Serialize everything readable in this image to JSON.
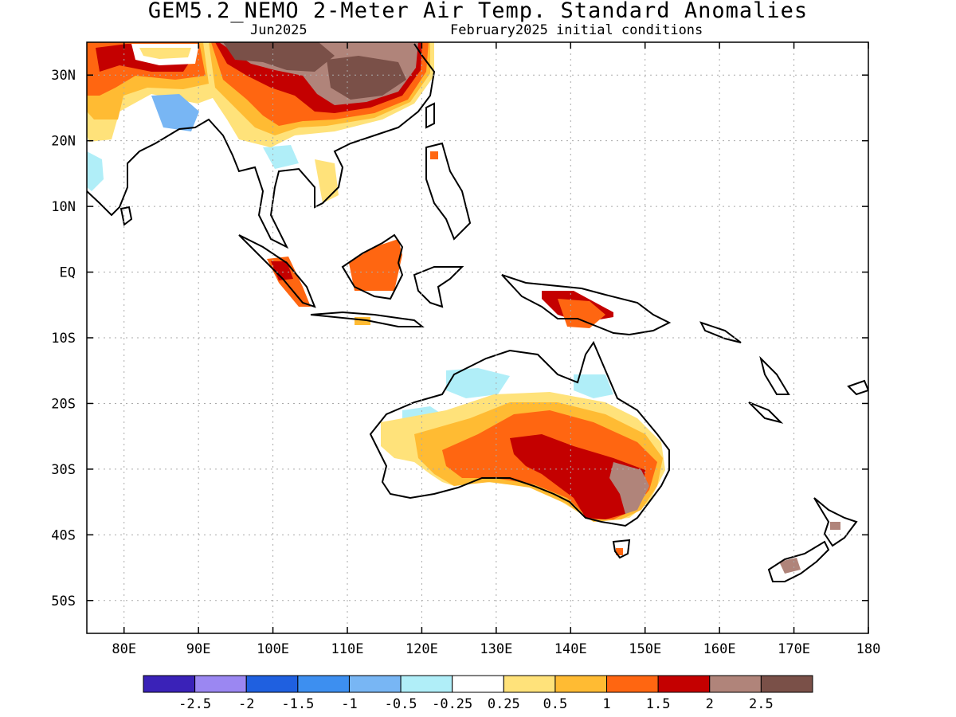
{
  "title": "GEM5.2_NEMO 2-Meter Air Temp. Standard Anomalies",
  "subtitle_left": "Jun2025",
  "subtitle_right": "February2025 initial conditions",
  "axes": {
    "lon_range": [
      75,
      180
    ],
    "lat_range": [
      -55,
      35
    ],
    "lon_ticks": [
      {
        "value": 80,
        "label": "80E"
      },
      {
        "value": 90,
        "label": "90E"
      },
      {
        "value": 100,
        "label": "100E"
      },
      {
        "value": 110,
        "label": "110E"
      },
      {
        "value": 120,
        "label": "120E"
      },
      {
        "value": 130,
        "label": "130E"
      },
      {
        "value": 140,
        "label": "140E"
      },
      {
        "value": 150,
        "label": "150E"
      },
      {
        "value": 160,
        "label": "160E"
      },
      {
        "value": 170,
        "label": "170E"
      },
      {
        "value": 180,
        "label": "180"
      }
    ],
    "lat_ticks": [
      {
        "value": 30,
        "label": "30N"
      },
      {
        "value": 20,
        "label": "20N"
      },
      {
        "value": 10,
        "label": "10N"
      },
      {
        "value": 0,
        "label": "EQ"
      },
      {
        "value": -10,
        "label": "10S"
      },
      {
        "value": -20,
        "label": "20S"
      },
      {
        "value": -30,
        "label": "30S"
      },
      {
        "value": -40,
        "label": "40S"
      },
      {
        "value": -50,
        "label": "50S"
      }
    ],
    "grid": "dotted"
  },
  "colorbar": {
    "colors": [
      "#3a22b8",
      "#9b87f2",
      "#1f60e0",
      "#3d8ff0",
      "#78b6f4",
      "#b0eef8",
      "#ffffff",
      "#ffe27a",
      "#ffbb33",
      "#ff6611",
      "#c40000",
      "#b0847a",
      "#7a5048"
    ],
    "labels": [
      "-2.5",
      "-2",
      "-1.5",
      "-1",
      "-0.5",
      "-0.25",
      "0.25",
      "0.5",
      "1",
      "1.5",
      "2",
      "2.5"
    ]
  },
  "regions": {
    "china_core": "#7a5048",
    "australia_hot_core": "#b0847a"
  }
}
